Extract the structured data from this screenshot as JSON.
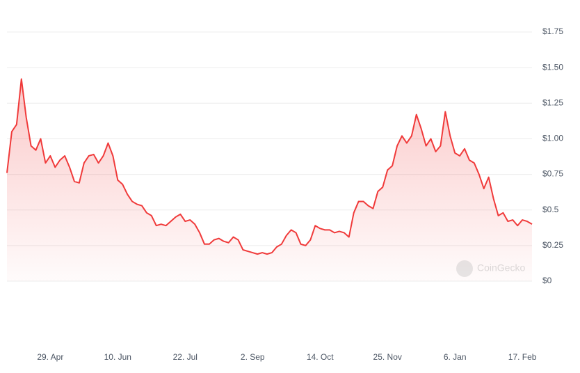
{
  "chart_data": {
    "type": "line",
    "watermark": "CoinGecko",
    "categories": [
      null,
      null,
      null,
      null,
      null,
      null,
      null,
      null,
      null,
      "29. Apr",
      null,
      null,
      null,
      null,
      null,
      null,
      null,
      null,
      null,
      null,
      null,
      null,
      null,
      "10. Jun",
      null,
      null,
      null,
      null,
      null,
      null,
      null,
      null,
      null,
      null,
      null,
      null,
      null,
      "22. Jul",
      null,
      null,
      null,
      null,
      null,
      null,
      null,
      null,
      null,
      null,
      null,
      null,
      null,
      "2. Sep",
      null,
      null,
      null,
      null,
      null,
      null,
      null,
      null,
      null,
      null,
      null,
      null,
      null,
      "14. Oct",
      null,
      null,
      null,
      null,
      null,
      null,
      null,
      null,
      null,
      null,
      null,
      null,
      null,
      "25. Nov",
      null,
      null,
      null,
      null,
      null,
      null,
      null,
      null,
      null,
      null,
      null,
      null,
      null,
      "6. Jan",
      null,
      null,
      null,
      null,
      null,
      null,
      null,
      null,
      null,
      null,
      null,
      null,
      null,
      "17. Feb",
      null,
      null
    ],
    "series": [
      {
        "color": "#f03a3a",
        "values": [
          0.76,
          1.05,
          1.1,
          1.42,
          1.15,
          0.95,
          0.92,
          1.0,
          0.83,
          0.88,
          0.8,
          0.85,
          0.88,
          0.8,
          0.7,
          0.69,
          0.83,
          0.88,
          0.89,
          0.83,
          0.88,
          0.97,
          0.88,
          0.71,
          0.68,
          0.61,
          0.56,
          0.54,
          0.53,
          0.48,
          0.46,
          0.39,
          0.4,
          0.39,
          0.42,
          0.45,
          0.47,
          0.42,
          0.43,
          0.4,
          0.34,
          0.26,
          0.26,
          0.29,
          0.3,
          0.28,
          0.27,
          0.31,
          0.29,
          0.22,
          0.21,
          0.2,
          0.19,
          0.2,
          0.19,
          0.2,
          0.24,
          0.26,
          0.32,
          0.36,
          0.34,
          0.26,
          0.25,
          0.29,
          0.39,
          0.37,
          0.36,
          0.36,
          0.34,
          0.35,
          0.34,
          0.31,
          0.48,
          0.56,
          0.56,
          0.53,
          0.51,
          0.63,
          0.66,
          0.78,
          0.81,
          0.95,
          1.02,
          0.97,
          1.02,
          1.17,
          1.07,
          0.95,
          1.0,
          0.91,
          0.95,
          1.19,
          1.02,
          0.9,
          0.88,
          0.93,
          0.85,
          0.83,
          0.75,
          0.65,
          0.73,
          0.58,
          0.46,
          0.48,
          0.42,
          0.43,
          0.39,
          0.43,
          0.42,
          0.4
        ]
      }
    ],
    "ylim": [
      0,
      1.75
    ],
    "yticks": [
      {
        "value": 0,
        "label": "$0"
      },
      {
        "value": 0.25,
        "label": "$0.25"
      },
      {
        "value": 0.5,
        "label": "$0.5"
      },
      {
        "value": 0.75,
        "label": "$0.75"
      },
      {
        "value": 1,
        "label": "$1.00"
      },
      {
        "value": 1.25,
        "label": "$1.25"
      },
      {
        "value": 1.5,
        "label": "$1.50"
      },
      {
        "value": 1.75,
        "label": "$1.75"
      }
    ],
    "grid": true
  }
}
